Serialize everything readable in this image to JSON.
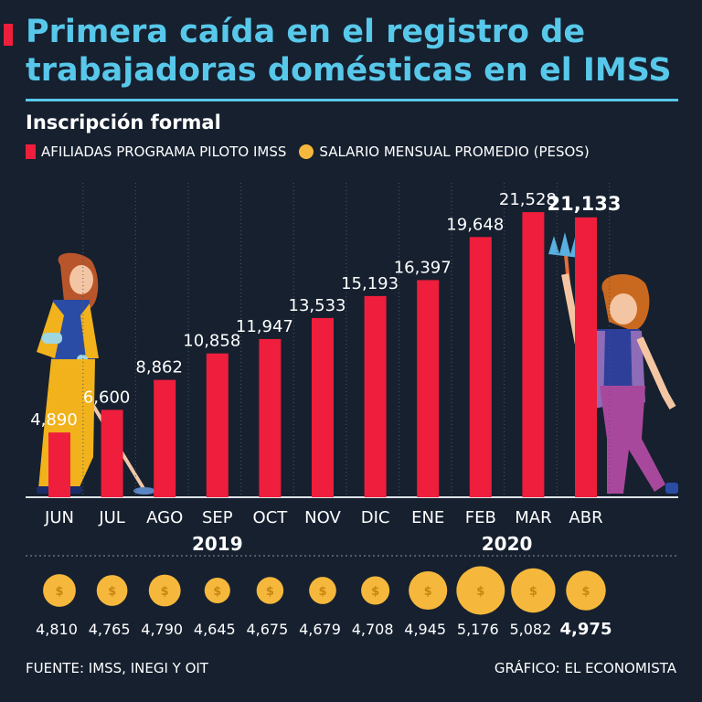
{
  "title": "Primera caída en el registro de trabajadoras domésticas en el IMSS",
  "subtitle": "Inscripción formal",
  "legend": {
    "series1": "AFILIADAS PROGRAMA PILOTO IMSS",
    "series2": "SALARIO MENSUAL PROMEDIO (PESOS)"
  },
  "chart_data": {
    "type": "bar",
    "title": "Primera caída en el registro de trabajadoras domésticas en el IMSS",
    "subtitle": "Inscripción formal",
    "categories": [
      "JUN",
      "JUL",
      "AGO",
      "SEP",
      "OCT",
      "NOV",
      "DIC",
      "ENE",
      "FEB",
      "MAR",
      "ABR"
    ],
    "year_labels": [
      {
        "label": "2019",
        "from": "JUN",
        "to": "DIC"
      },
      {
        "label": "2020",
        "from": "ENE",
        "to": "ABR"
      }
    ],
    "series": [
      {
        "name": "AFILIADAS PROGRAMA PILOTO IMSS",
        "type": "bar",
        "values": [
          4890,
          6600,
          8862,
          10858,
          11947,
          13533,
          15193,
          16397,
          19648,
          21528,
          21133
        ],
        "labels": [
          "4,890",
          "6,600",
          "8,862",
          "10,858",
          "11,947",
          "13,533",
          "15,193",
          "16,397",
          "19,648",
          "21,528",
          "21,133"
        ],
        "color": "#ee1e3c"
      },
      {
        "name": "SALARIO MENSUAL PROMEDIO (PESOS)",
        "type": "bubble",
        "values": [
          4810,
          4765,
          4790,
          4645,
          4675,
          4679,
          4708,
          4945,
          5176,
          5082,
          4975
        ],
        "labels": [
          "4,810",
          "4,765",
          "4,790",
          "4,645",
          "4,675",
          "4,679",
          "4,708",
          "4,945",
          "5,176",
          "5,082",
          "4,975"
        ],
        "color": "#f6b83c",
        "symbol": "$"
      }
    ],
    "ylim": [
      0,
      22500
    ],
    "xlabel": "",
    "ylabel": "",
    "grid": "vertical dotted"
  },
  "footer": {
    "source": "FUENTE: IMSS, INEGI Y OIT",
    "credit": "GRÁFICO: EL ECONOMISTA"
  },
  "colors": {
    "background": "#16202f",
    "accent": "#58c8ea",
    "bar": "#ee1e3c",
    "coin": "#f6b83c"
  }
}
